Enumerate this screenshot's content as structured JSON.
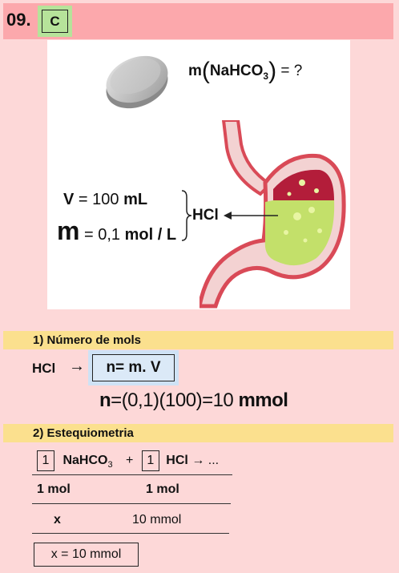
{
  "question": {
    "number": "09.",
    "answer": "C"
  },
  "figure": {
    "mass_label": "m",
    "mass_formula": "NaHCO",
    "mass_subscript": "3",
    "mass_rhs": "= ?",
    "volume_lhs": "V",
    "volume_rhs": "= 100",
    "volume_unit": "mL",
    "molarity_symbol": "m",
    "molarity_value": "= 0,1",
    "molarity_unit": "mol / L",
    "acid_label": "HCl"
  },
  "step1": {
    "title": "1) Número de mols",
    "species": "HCl",
    "arrow": "→",
    "formula": "n= m. V",
    "calc_n": "n",
    "calc_rhs": "=(0,1)(100)=10",
    "calc_unit": "mmol"
  },
  "step2": {
    "title": "2) Estequiometria",
    "coef1": "1",
    "reactant1": "NaHCO",
    "reactant1_sub": "3",
    "plus": "+",
    "coef2": "1",
    "reactant2": "HCl",
    "tail": "→ ...",
    "row1_left": "1 mol",
    "row1_right": "1 mol",
    "row2_left": "x",
    "row2_right": "10 mmol",
    "result": "x = 10 mmol"
  },
  "colors": {
    "background": "#fdd8d8",
    "header": "#fca8ac",
    "answer_box": "#b6e39a",
    "section_bar": "#fbe08e",
    "formula_box": "#cfe2f5"
  }
}
